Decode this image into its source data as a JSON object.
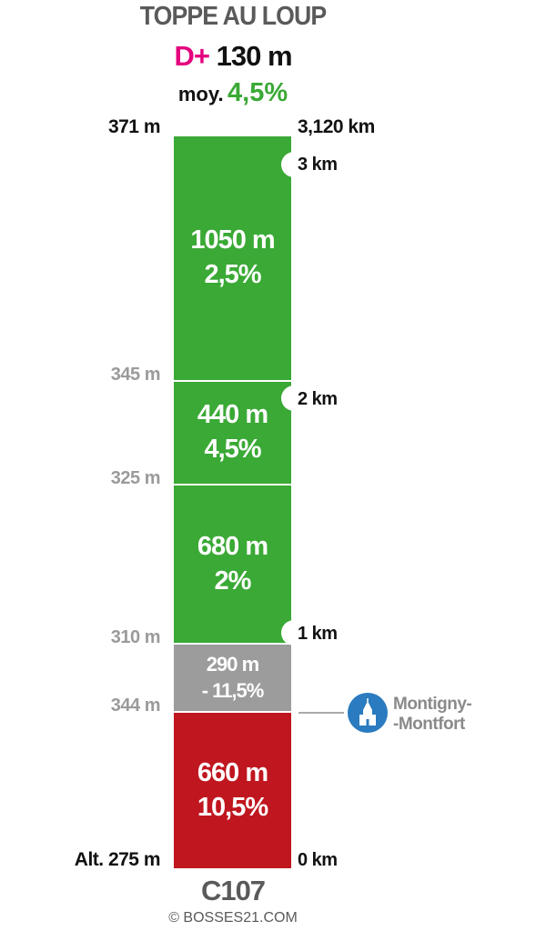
{
  "header": {
    "title": "TOPPE AU LOUP",
    "dplus_label": "D+",
    "dplus_value": "130 m",
    "avg_label": "moy.",
    "avg_value": "4,5%"
  },
  "top": {
    "altitude": "371 m",
    "distance": "3,120 km"
  },
  "bottom": {
    "altitude": "Alt. 275 m",
    "distance": "0 km"
  },
  "km_markers": [
    "3 km",
    "2 km",
    "1 km"
  ],
  "altitudes": [
    "345 m",
    "325 m",
    "310 m",
    "344 m"
  ],
  "segments": [
    {
      "length": "1050 m",
      "grade": "2,5%",
      "color": "#3aa935"
    },
    {
      "length": "440 m",
      "grade": "4,5%",
      "color": "#3aa935"
    },
    {
      "length": "680 m",
      "grade": "2%",
      "color": "#3aa935"
    },
    {
      "length": "290 m",
      "grade": "- 11,5%",
      "color": "#9d9c9c"
    },
    {
      "length": "660 m",
      "grade": "10,5%",
      "color": "#c0161f"
    }
  ],
  "poi": {
    "line1": "Montigny-",
    "line2": "-Montfort",
    "icon": "church-icon",
    "color": "#2a7bbf"
  },
  "footer": {
    "road": "C107",
    "credit": "© BOSSES21.COM"
  }
}
